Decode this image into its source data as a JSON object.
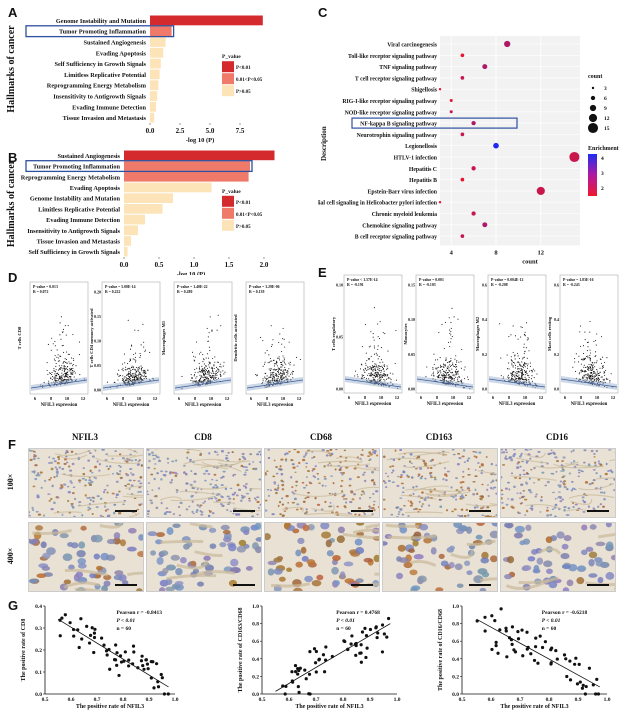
{
  "panels": {
    "A": {
      "letter": "A",
      "ylabel": "Hallmarks of cancer",
      "xlabel": "-log 10 (P)",
      "xticks": [
        "0.0",
        "2.5",
        "5.0",
        "7.5"
      ],
      "xmax": 10,
      "categories": [
        "Genome Instability and Mutation",
        "Tumor Promoting Inflammation",
        "Sustained Angiogenesis",
        "Evading Apoptosis",
        "Self Sufficiency in Growth Signals",
        "Limitless Replicative Potential",
        "Reprogramming Energy Metabolism",
        "Insensitivity to Antigrowth Signals",
        "Evading Immune Detection",
        "Tissue Invasion and Metastasis"
      ],
      "values": [
        9.4,
        1.8,
        1.3,
        1.1,
        0.9,
        0.8,
        0.7,
        0.6,
        0.5,
        0.35
      ],
      "levels": [
        0,
        1,
        2,
        2,
        2,
        2,
        2,
        2,
        2,
        2
      ],
      "legend_title": "P_value",
      "legend_items": [
        "P<0.01",
        "0.01<P<0.05",
        "P>0.05"
      ]
    },
    "B": {
      "letter": "B",
      "ylabel": "Hallmarks of cancer",
      "xlabel": "-log 10 (P)",
      "xticks": [
        "0.0",
        "0.5",
        "1.0",
        "1.5",
        "2.0"
      ],
      "xmax": 2.2,
      "categories": [
        "Sustained Angiogenesis",
        "Tumor Promoting Inflammation",
        "Reprogramming Energy Metabolism",
        "Evading Apoptosis",
        "Genome Instability and Mutation",
        "Limitless Replicative Potential",
        "Evading Immune Detection",
        "Insensitivity to Antigrowth Signals",
        "Tissue Invasion and Metastasis",
        "Self Sufficiency in Growth Signals"
      ],
      "values": [
        2.15,
        1.8,
        1.78,
        1.25,
        0.7,
        0.55,
        0.3,
        0.2,
        0.1,
        0.05
      ],
      "levels": [
        0,
        1,
        1,
        2,
        2,
        2,
        2,
        2,
        2,
        2
      ],
      "legend_title": "P_value",
      "legend_items": [
        "P<0.01",
        "0.01<P<0.05",
        "P>0.05"
      ]
    },
    "C": {
      "letter": "C",
      "ylabel": "Description",
      "xlabel": "count",
      "xticks": [
        "4",
        "8",
        "12"
      ],
      "xmin": 3,
      "xmax": 15.5,
      "terms": [
        "Viral carcinogenesis",
        "Toll-like receptor signaling pathway",
        "TNF signaling pathway",
        "T cell receptor signaling pathway",
        "Shigellosis",
        "RIG-I-like receptor signaling pathway",
        "NOD-like receptor signaling pathway",
        "NF-kappa B signaling pathway",
        "Neurotrophin signaling pathway",
        "Legionellosis",
        "HTLV-1 infection",
        "Hepatitis C",
        "Hepatitis B",
        "Epstein-Barr virus infection",
        "Epithelial cell signaling in Helicobacter pylori infection",
        "Chronic myeloid leukemia",
        "Chemokine signaling pathway",
        "B cell receptor signaling pathway"
      ],
      "counts": [
        9,
        5,
        7,
        5,
        3,
        4,
        4,
        6,
        5,
        8,
        15,
        6,
        5,
        12,
        3,
        6,
        7,
        5
      ],
      "enrichment": [
        2.5,
        1.5,
        2.5,
        2,
        1.5,
        1.5,
        2,
        2.5,
        2,
        5,
        2,
        2,
        1.5,
        2,
        1.5,
        2,
        2.5,
        2
      ],
      "size_title": "count",
      "size_items": [
        "3",
        "6",
        "9",
        "12",
        "15"
      ],
      "color_title": "Enrichment",
      "color_ticks": [
        "4",
        "3",
        "2"
      ]
    },
    "D": {
      "letter": "D",
      "xlabel": "NFIL3 expression",
      "xticks": [
        "6",
        "8",
        "10",
        "12"
      ],
      "plots": [
        {
          "ylabel": "T cells CD8",
          "stat_p": "P-value = 0.013",
          "stat_r": "R = 0.072",
          "yticks": []
        },
        {
          "ylabel": "T cells CD4 memory activated",
          "stat_p": "P-value = 5.00E-14",
          "stat_r": "R = 0.222",
          "yticks": [
            "0.00",
            "0.05",
            "0.10",
            "0.15",
            "0.20"
          ]
        },
        {
          "ylabel": "Macrophages M1",
          "stat_p": "P-value = 1.40E-22",
          "stat_r": "R = 0.280",
          "yticks": []
        },
        {
          "ylabel": "Dendritic cells activated",
          "stat_p": "P-value = 3.29E-06",
          "stat_r": "R = 0.139",
          "yticks": []
        }
      ]
    },
    "E": {
      "letter": "E",
      "xlabel": "NFIL3 expression",
      "xticks": [
        "6",
        "8",
        "10",
        "12"
      ],
      "plots": [
        {
          "ylabel": "T cells regulatory",
          "stat_p": "P-value < 1.57E-14",
          "stat_r": "R = -0.191",
          "yticks": [
            "0.00",
            "0.05",
            "0.10"
          ]
        },
        {
          "ylabel": "Monocytes",
          "stat_p": "P-value = 0.001",
          "stat_r": "R = -0.103",
          "yticks": [
            "0.00",
            "0.05",
            "0.10",
            "0.15"
          ]
        },
        {
          "ylabel": "Macrophages M2",
          "stat_p": "P-value = 0.004E-12",
          "stat_r": "R = -0.208",
          "yticks": [
            "0.0",
            "0.2",
            "0.4",
            "0.6"
          ]
        },
        {
          "ylabel": "Mast cells resting",
          "stat_p": "P-value = 1.83E-16",
          "stat_r": "R = -0.243",
          "yticks": [
            "0.0",
            "0.2",
            "0.4",
            "0.6"
          ]
        }
      ]
    },
    "F": {
      "letter": "F",
      "columns": [
        "NFIL3",
        "CD8",
        "CD68",
        "CD163",
        "CD16"
      ],
      "rows": [
        "100×",
        "400×"
      ]
    },
    "G": {
      "letter": "G",
      "xlabel": "The positive rate of NFIL3",
      "xticks": [
        "0.5",
        "0.6",
        "0.7",
        "0.8",
        "0.9",
        "1.0"
      ],
      "plots": [
        {
          "ylabel": "The positive rate of CD8",
          "stat_r": "Pearson r = -0.8413",
          "stat_p": "P < 0.01",
          "stat_n": "n = 60",
          "yticks": [
            "0.0",
            "0.1",
            "0.2",
            "0.3",
            "0.4"
          ],
          "slope": -1
        },
        {
          "ylabel": "The positive rate of CD163/CD68",
          "stat_r": "Pearson r = 0.4768",
          "stat_p": "P < 0.01",
          "stat_n": "n = 60",
          "yticks": [
            "0.0",
            "0.2",
            "0.4",
            "0.6",
            "0.8",
            "1.0"
          ],
          "slope": 1
        },
        {
          "ylabel": "The positive rate of CD16/CD68",
          "stat_r": "Pearson r = -0.6218",
          "stat_p": "P < 0.01",
          "stat_n": "n = 60",
          "yticks": [
            "0.0",
            "0.2",
            "0.4",
            "0.6",
            "0.8",
            "1.0"
          ],
          "slope": -1
        }
      ]
    }
  },
  "colors": {
    "p_lt_001": "#d42a2e",
    "p_001_005": "#f07a6a",
    "p_gt_005": "#fde3b8",
    "box": "#2f4f9f",
    "regress": "#8fa6c8"
  }
}
